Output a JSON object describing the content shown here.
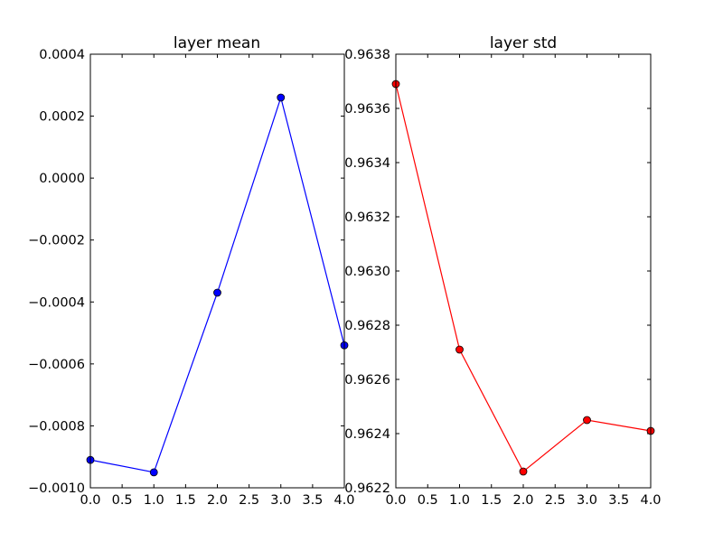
{
  "chart_data": [
    {
      "type": "line",
      "title": "layer mean",
      "xlabel": "",
      "ylabel": "",
      "x": [
        0,
        1,
        2,
        3,
        4
      ],
      "series": [
        {
          "values": [
            -0.00091,
            -0.00095,
            -0.00037,
            0.00026,
            -0.00054
          ],
          "color": "#0000ff",
          "marker": "circle"
        }
      ],
      "xlim": [
        0,
        4
      ],
      "ylim": [
        -0.001,
        0.0004
      ],
      "xticks": [
        0.0,
        0.5,
        1.0,
        1.5,
        2.0,
        2.5,
        3.0,
        3.5,
        4.0
      ],
      "xtick_labels": [
        "0.0",
        "0.5",
        "1.0",
        "1.5",
        "2.0",
        "2.5",
        "3.0",
        "3.5",
        "4.0"
      ],
      "yticks": [
        0.0004,
        0.0002,
        0.0,
        -0.0002,
        -0.0004,
        -0.0006,
        -0.0008,
        -0.001
      ],
      "ytick_labels": [
        "0.0004",
        "0.0002",
        "0.0000",
        "−0.0002",
        "−0.0004",
        "−0.0006",
        "−0.0008",
        "−0.0010"
      ],
      "grid": false
    },
    {
      "type": "line",
      "title": "layer std",
      "xlabel": "",
      "ylabel": "",
      "x": [
        0,
        1,
        2,
        3,
        4
      ],
      "series": [
        {
          "values": [
            0.96369,
            0.96271,
            0.96226,
            0.96245,
            0.96241
          ],
          "color": "#ff0000",
          "marker": "circle"
        }
      ],
      "xlim": [
        0,
        4
      ],
      "ylim": [
        0.9622,
        0.9638
      ],
      "xticks": [
        0.0,
        0.5,
        1.0,
        1.5,
        2.0,
        2.5,
        3.0,
        3.5,
        4.0
      ],
      "xtick_labels": [
        "0.0",
        "0.5",
        "1.0",
        "1.5",
        "2.0",
        "2.5",
        "3.0",
        "3.5",
        "4.0"
      ],
      "yticks": [
        0.9638,
        0.9636,
        0.9634,
        0.9632,
        0.963,
        0.9628,
        0.9626,
        0.9624,
        0.9622
      ],
      "ytick_labels": [
        "0.9638",
        "0.9636",
        "0.9634",
        "0.9632",
        "0.9630",
        "0.9628",
        "0.9626",
        "0.9624",
        "0.9622"
      ],
      "grid": false
    }
  ]
}
